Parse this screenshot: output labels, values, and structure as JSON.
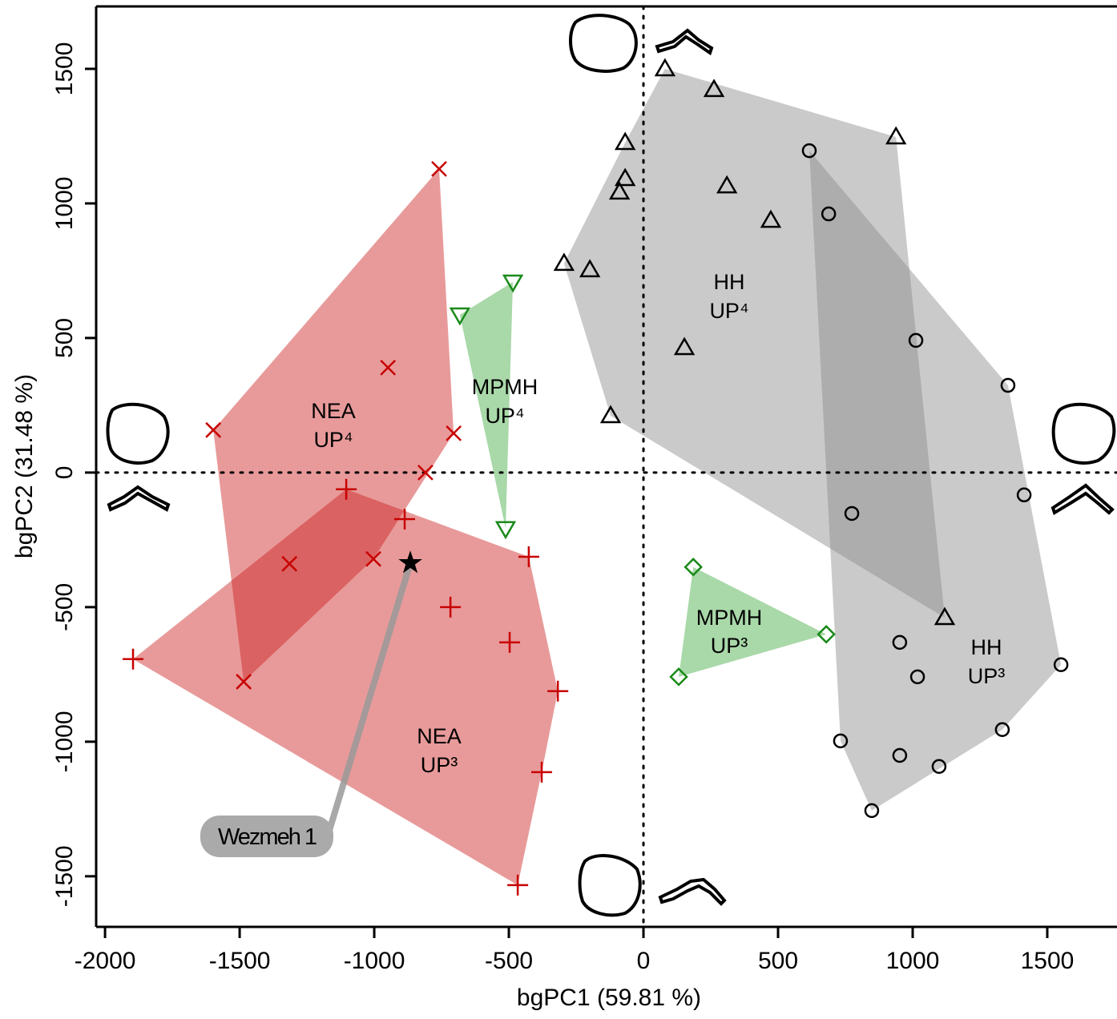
{
  "chart_data": {
    "type": "scatter",
    "xlabel": "bgPC1 (59.81 %)",
    "ylabel": "bgPC2 (31.48 %)",
    "xlim": [
      -2033,
      1759
    ],
    "ylim": [
      -1688,
      1732
    ],
    "xticks": [
      -2000,
      -1500,
      -1000,
      -500,
      0,
      500,
      1000,
      1500
    ],
    "yticks": [
      -1500,
      -1000,
      -500,
      0,
      500,
      1000,
      1500
    ],
    "zero_lines": true,
    "series": [
      {
        "name": "NEA",
        "tooth": "UP⁴",
        "marker": "x",
        "color": "#c80000",
        "hull_color": "#cd2020",
        "x": [
          -759,
          -949,
          -1598,
          -705,
          -810,
          -1003,
          -1315,
          -1485
        ],
        "values": [
          1128,
          390,
          158,
          146,
          0,
          -321,
          -339,
          -777
        ]
      },
      {
        "name": "NEA",
        "tooth": "UP³",
        "marker": "plus",
        "color": "#c80000",
        "hull_color": "#cd2020",
        "x": [
          -1104,
          -887,
          -426,
          -717,
          -497,
          -318,
          -1896,
          -378,
          -467
        ],
        "values": [
          -62,
          -173,
          -313,
          -500,
          -631,
          -812,
          -693,
          -1113,
          -1533
        ]
      },
      {
        "name": "MPMH",
        "tooth": "UP⁴",
        "marker": "triangle-down",
        "color": "#1a8a1a",
        "hull_color": "#40a840",
        "x": [
          -485,
          -682,
          -512
        ],
        "values": [
          708,
          586,
          -208
        ]
      },
      {
        "name": "MPMH",
        "tooth": "UP³",
        "marker": "diamond",
        "color": "#1a8a1a",
        "hull_color": "#40a840",
        "x": [
          185,
          679,
          131
        ],
        "values": [
          -351,
          -601,
          -759
        ]
      },
      {
        "name": "HH",
        "tooth": "UP⁴",
        "marker": "triangle",
        "color": "#000000",
        "hull_color": "#8a8a8a",
        "x": [
          80,
          262,
          938,
          -68,
          -68,
          -89,
          310,
          473,
          -295,
          -199,
          152,
          -122,
          1119
        ],
        "values": [
          1500,
          1423,
          1247,
          1226,
          1092,
          1042,
          1065,
          937,
          777,
          753,
          464,
          211,
          -539
        ]
      },
      {
        "name": "HH",
        "tooth": "UP³",
        "marker": "circle",
        "color": "#000000",
        "hull_color": "#8a8a8a",
        "x": [
          616,
          688,
          1012,
          1354,
          1414,
          774,
          952,
          1018,
          1551,
          732,
          952,
          1098,
          1333,
          848
        ],
        "values": [
          1196,
          961,
          491,
          324,
          -83,
          -152,
          -631,
          -759,
          -714,
          -997,
          -1051,
          -1092,
          -955,
          -1256
        ]
      },
      {
        "name": "Wezmeh 1",
        "marker": "star",
        "color": "#000000",
        "x": [
          -866
        ],
        "values": [
          -336
        ]
      }
    ]
  }
}
